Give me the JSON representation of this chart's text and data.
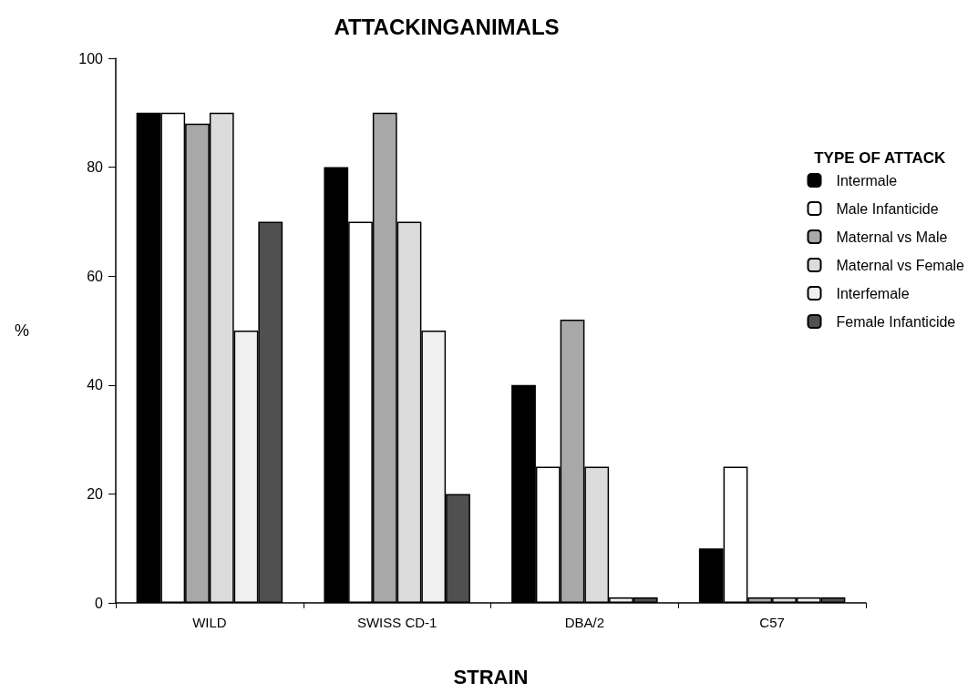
{
  "chart_data": {
    "type": "bar",
    "title": "ATTACKINGANIMALS",
    "xlabel": "STRAIN",
    "ylabel": "%",
    "legend_title": "TYPE OF ATTACK",
    "categories": [
      "WILD",
      "SWISS CD-1",
      "DBA/2",
      "C57"
    ],
    "series": [
      {
        "name": "Intermale",
        "color": "#000000",
        "values": [
          90,
          80,
          40,
          10
        ]
      },
      {
        "name": "Male Infanticide",
        "color": "#ffffff",
        "values": [
          90,
          70,
          25,
          25
        ]
      },
      {
        "name": "Maternal vs Male",
        "color": "#a8a8a8",
        "values": [
          88,
          90,
          52,
          1
        ]
      },
      {
        "name": "Maternal vs Female",
        "color": "#dcdcdc",
        "values": [
          90,
          70,
          25,
          1
        ]
      },
      {
        "name": "Interfemale",
        "color": "#f0f0f0",
        "values": [
          50,
          50,
          1,
          1
        ]
      },
      {
        "name": "Female Infanticide",
        "color": "#505050",
        "values": [
          70,
          20,
          1,
          1
        ]
      }
    ],
    "ylim": [
      0,
      100
    ],
    "yticks": [
      0,
      20,
      40,
      60,
      80,
      100
    ],
    "grid": false,
    "legend": "top right"
  }
}
